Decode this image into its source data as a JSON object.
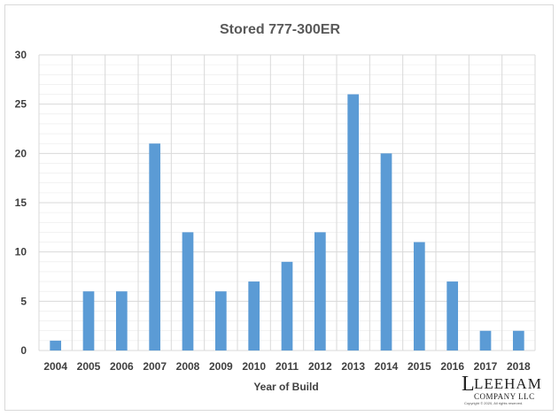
{
  "chart_data": {
    "type": "bar",
    "title": "Stored 777-300ER",
    "xlabel": "Year of Build",
    "ylabel": "",
    "categories": [
      "2004",
      "2005",
      "2006",
      "2007",
      "2008",
      "2009",
      "2010",
      "2011",
      "2012",
      "2013",
      "2014",
      "2015",
      "2016",
      "2017",
      "2018"
    ],
    "values": [
      1,
      6,
      6,
      21,
      12,
      6,
      7,
      9,
      12,
      26,
      20,
      11,
      7,
      2,
      2
    ],
    "ylim": [
      0,
      30
    ],
    "yticks": [
      0,
      5,
      10,
      15,
      20,
      25,
      30
    ],
    "grid": true,
    "bar_color": "#5b9bd5",
    "grid_color": "#d9d9d9"
  },
  "logo": {
    "line1": "LEEHAM",
    "line2": "COMPANY LLC",
    "copyright": "Copyright © 2020, All rights reserved."
  }
}
